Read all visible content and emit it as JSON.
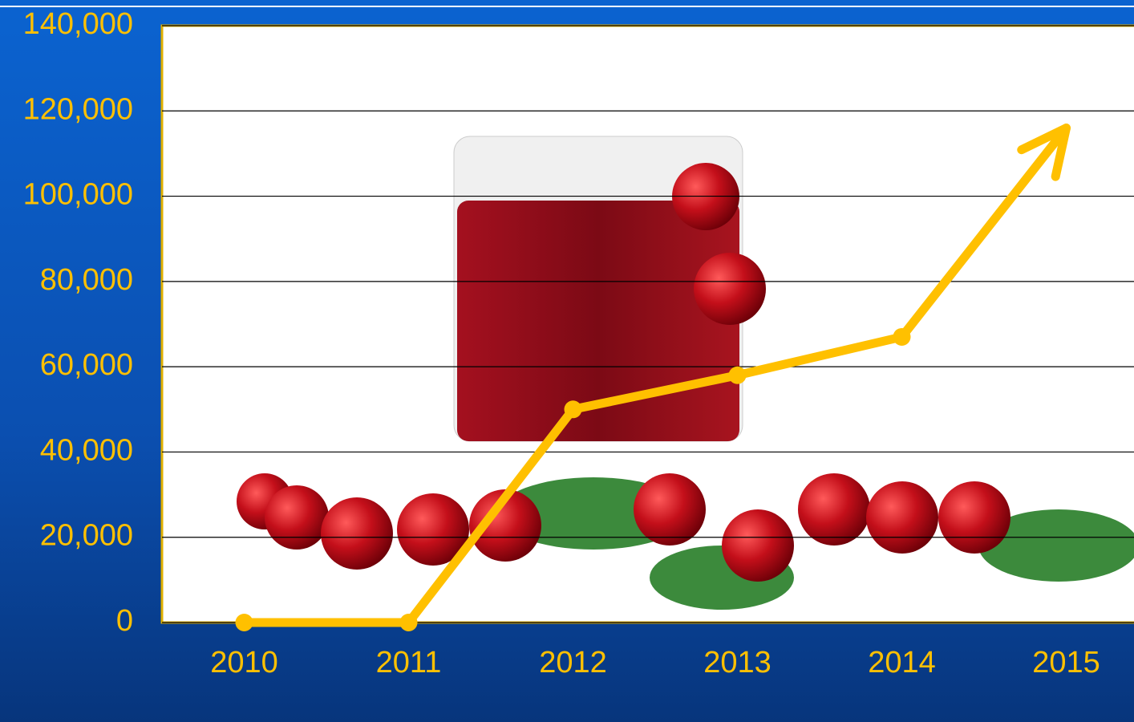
{
  "chart_data": {
    "type": "line",
    "categories": [
      "2010",
      "2011",
      "2012",
      "2013",
      "2014",
      "2015"
    ],
    "series": [
      {
        "color": "#ffc000",
        "values": [
          0,
          0,
          50000,
          58000,
          67000,
          116000
        ]
      }
    ],
    "ylim": [
      0,
      140000
    ],
    "yticks": [
      {
        "value": 0,
        "label": "0"
      },
      {
        "value": 20000,
        "label": "20,000"
      },
      {
        "value": 40000,
        "label": "40,000"
      },
      {
        "value": 60000,
        "label": "60,000"
      },
      {
        "value": 80000,
        "label": "80,000"
      },
      {
        "value": 100000,
        "label": "100,000"
      },
      {
        "value": 120000,
        "label": "120,000"
      },
      {
        "value": 140000,
        "label": "140,000"
      }
    ],
    "grid": true
  }
}
